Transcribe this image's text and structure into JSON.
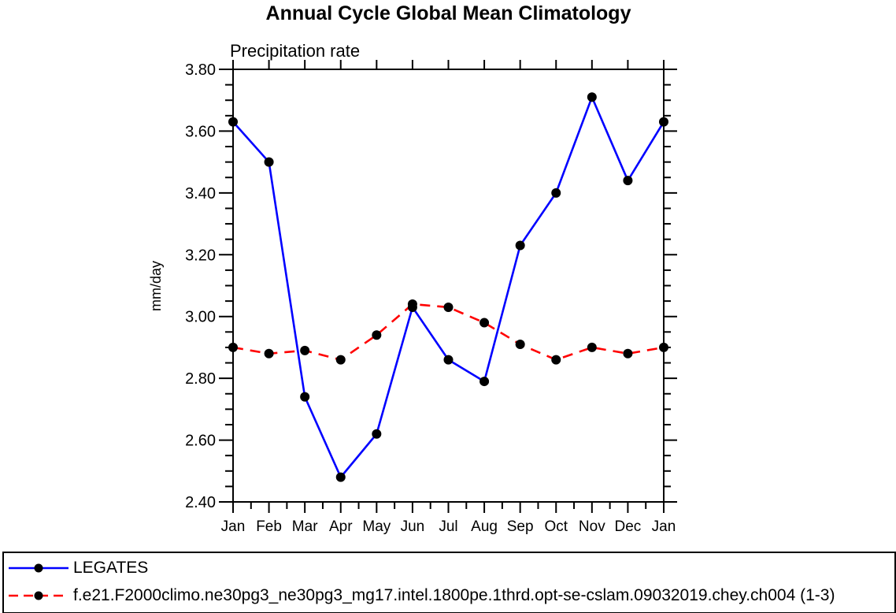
{
  "title": "Annual Cycle Global Mean Climatology",
  "chart_data": {
    "type": "line",
    "title": "Annual Cycle Global Mean Climatology",
    "subtitle": "Precipitation rate",
    "xlabel": "",
    "ylabel": "mm/day",
    "categories": [
      "Jan",
      "Feb",
      "Mar",
      "Apr",
      "May",
      "Jun",
      "Jul",
      "Aug",
      "Sep",
      "Oct",
      "Nov",
      "Dec",
      "Jan"
    ],
    "ylim": [
      2.4,
      3.8
    ],
    "y_tick_step": 0.2,
    "y_minor_step": 0.05,
    "y_tick_labels": [
      "2.40",
      "2.60",
      "2.80",
      "3.00",
      "3.20",
      "3.40",
      "3.60",
      "3.80"
    ],
    "grid": false,
    "legend_position": "bottom-full-width-box",
    "series": [
      {
        "name": "LEGATES",
        "color": "#0000ff",
        "style": "solid",
        "marker": "circle",
        "marker_color": "#000000",
        "values": [
          3.63,
          3.5,
          2.74,
          2.48,
          2.62,
          3.03,
          2.86,
          2.79,
          3.23,
          3.4,
          3.71,
          3.44,
          3.63
        ]
      },
      {
        "name": "f.e21.F2000climo.ne30pg3_ne30pg3_mg17.intel.1800pe.1thrd.opt-se-cslam.09032019.chey.ch004 (1-3)",
        "color": "#ff0000",
        "style": "dashed",
        "marker": "circle",
        "marker_color": "#000000",
        "values": [
          2.9,
          2.88,
          2.89,
          2.86,
          2.94,
          3.04,
          3.03,
          2.98,
          2.91,
          2.86,
          2.9,
          2.88,
          2.9
        ]
      }
    ]
  }
}
